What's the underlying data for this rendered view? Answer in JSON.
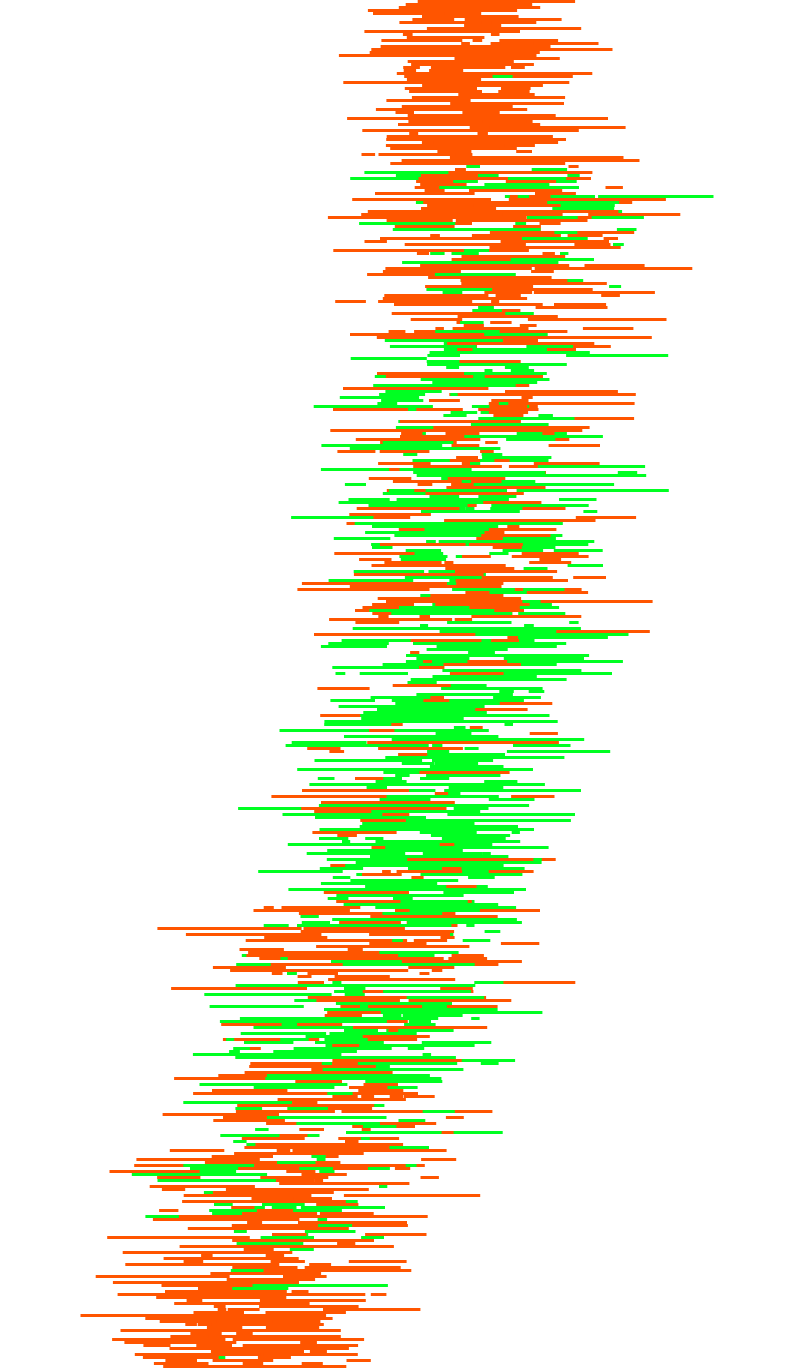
{
  "background_color": "#ffffff",
  "palette": {
    "orange": "#ff5500",
    "green": "#00ff22"
  },
  "description_role": "decorative-graphic",
  "band_count_per_row": "variable",
  "seed": 7
}
